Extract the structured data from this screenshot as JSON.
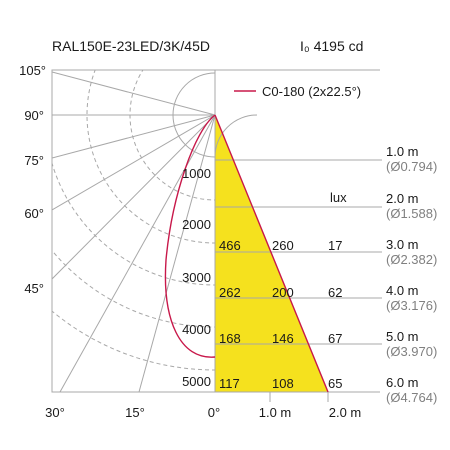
{
  "header": {
    "model": "RAL150E-23LED/3K/45D",
    "intensity": "I₀ 4195 cd"
  },
  "legend": {
    "label": "C0-180 (2x22.5°)"
  },
  "colors": {
    "curve": "#c8184a",
    "cone": "#f5e11e",
    "grid": "#a8a8a8",
    "text": "#1a1a1a",
    "muted": "#808080"
  },
  "angles_left": [
    {
      "text": "105°"
    },
    {
      "text": "90°"
    },
    {
      "text": "75°"
    },
    {
      "text": "60°"
    },
    {
      "text": "45°"
    }
  ],
  "angles_bottom": [
    {
      "text": "30°"
    },
    {
      "text": "15°"
    },
    {
      "text": "0°"
    }
  ],
  "intensity_scale": [
    "1000",
    "2000",
    "3000",
    "4000",
    "5000"
  ],
  "distance_axis": [
    "1.0 m",
    "2.0 m"
  ],
  "lux_header": "lux",
  "rows": [
    {
      "distance": "1.0 m",
      "diameter": "(Ø0.794)",
      "values": []
    },
    {
      "distance": "2.0 m",
      "diameter": "(Ø1.588)",
      "values": []
    },
    {
      "distance": "3.0 m",
      "diameter": "(Ø2.382)",
      "values": [
        "466",
        "260",
        "17"
      ]
    },
    {
      "distance": "4.0 m",
      "diameter": "(Ø3.176)",
      "values": [
        "262",
        "200",
        "62"
      ]
    },
    {
      "distance": "5.0 m",
      "diameter": "(Ø3.970)",
      "values": [
        "168",
        "146",
        "67"
      ]
    },
    {
      "distance": "6.0 m",
      "diameter": "(Ø4.764)",
      "values": [
        "117",
        "108",
        "65"
      ]
    }
  ]
}
